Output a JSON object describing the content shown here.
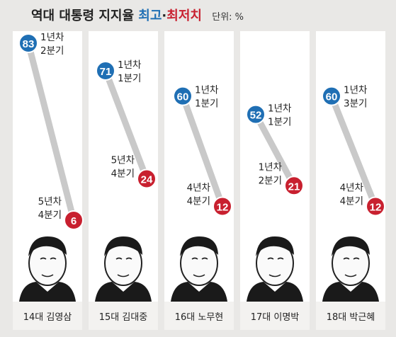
{
  "title": {
    "prefix": "역대 대통령 지지율",
    "high": "최고",
    "sep": "·",
    "low": "최저치",
    "unit": "단위: %"
  },
  "colors": {
    "high": "#1f6fb4",
    "low": "#c8202f",
    "line": "#c9c9c9",
    "background": "#e9e8e6",
    "panel": "#ffffff"
  },
  "chart_data": {
    "type": "line",
    "title": "역대 대통령 지지율 최고·최저치",
    "unit": "단위: %",
    "ylim": [
      0,
      90
    ],
    "presidents": [
      {
        "name": "14대 김영삼",
        "high": {
          "value": 83,
          "label": [
            "1년차",
            "2분기"
          ]
        },
        "low": {
          "value": 6,
          "label": [
            "5년차",
            "4분기"
          ]
        }
      },
      {
        "name": "15대 김대중",
        "high": {
          "value": 71,
          "label": [
            "1년차",
            "1분기"
          ]
        },
        "low": {
          "value": 24,
          "label": [
            "5년차",
            "4분기"
          ]
        }
      },
      {
        "name": "16대 노무현",
        "high": {
          "value": 60,
          "label": [
            "1년차",
            "1분기"
          ]
        },
        "low": {
          "value": 12,
          "label": [
            "4년차",
            "4분기"
          ]
        }
      },
      {
        "name": "17대 이명박",
        "high": {
          "value": 52,
          "label": [
            "1년차",
            "1분기"
          ]
        },
        "low": {
          "value": 21,
          "label": [
            "1년차",
            "2분기"
          ]
        }
      },
      {
        "name": "18대 박근혜",
        "high": {
          "value": 60,
          "label": [
            "1년차",
            "3분기"
          ]
        },
        "low": {
          "value": 12,
          "label": [
            "4년차",
            "4분기"
          ]
        }
      }
    ]
  }
}
